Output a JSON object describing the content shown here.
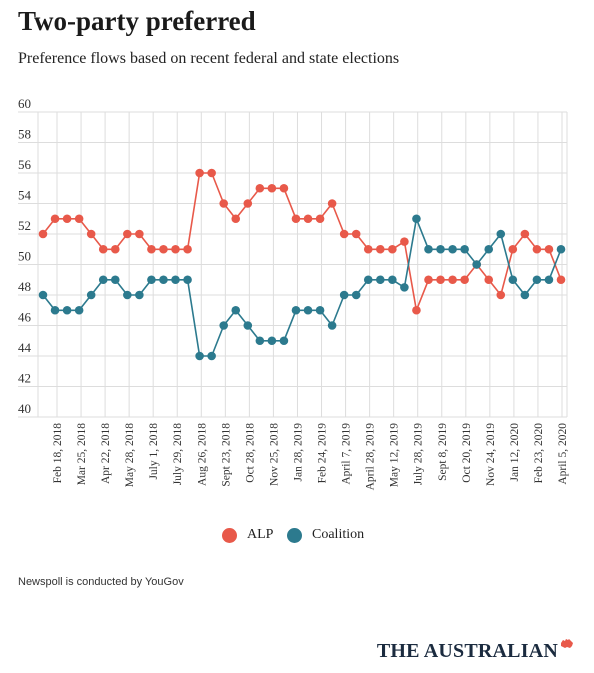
{
  "header": {
    "title": "Two-party preferred",
    "subtitle": "Preference flows based on recent federal and state elections"
  },
  "footer": {
    "note": "Newspoll is conducted by YouGov",
    "brand": "THE AUSTRALIAN"
  },
  "colors": {
    "alp": "#e8594a",
    "coalition": "#2c7a8e",
    "grid": "#dddddd",
    "brand_mark": "#e8594a"
  },
  "chart_data": {
    "type": "line",
    "title": "Two-party preferred",
    "subtitle": "Preference flows based on recent federal and state elections",
    "ylim": [
      40,
      60
    ],
    "yticks": [
      40,
      42,
      44,
      46,
      48,
      50,
      52,
      54,
      56,
      58,
      60
    ],
    "grid": true,
    "legend_position": "bottom-center",
    "x_tick_labels": [
      "Feb 18, 2018",
      "Mar 25, 2018",
      "Apr 22, 2018",
      "May 28, 2018",
      "July 1, 2018",
      "July 29, 2018",
      "Aug 26, 2018",
      "Sept 23, 2018",
      "Oct 28, 2018",
      "Nov 25, 2018",
      "Jan 28, 2019",
      "Feb 24, 2019",
      "April 7, 2019",
      "April 28, 2019",
      "May 12, 2019",
      "July 28, 2019",
      "Sept 8, 2019",
      "Oct 20, 2019",
      "Nov 24, 2019",
      "Jan 12, 2020",
      "Feb 23, 2020",
      "April 5, 2020"
    ],
    "series": [
      {
        "name": "ALP",
        "color": "#e8594a",
        "values": [
          52,
          53,
          53,
          53,
          52,
          51,
          51,
          52,
          52,
          51,
          51,
          51,
          51,
          56,
          56,
          54,
          53,
          54,
          55,
          55,
          55,
          53,
          53,
          53,
          54,
          52,
          52,
          51,
          51,
          51,
          51.5,
          47,
          49,
          49,
          49,
          49,
          50,
          49,
          48,
          51,
          52,
          51,
          51,
          49
        ]
      },
      {
        "name": "Coalition",
        "color": "#2c7a8e",
        "values": [
          48,
          47,
          47,
          47,
          48,
          49,
          49,
          48,
          48,
          49,
          49,
          49,
          49,
          44,
          44,
          46,
          47,
          46,
          45,
          45,
          45,
          47,
          47,
          47,
          46,
          48,
          48,
          49,
          49,
          49,
          48.5,
          53,
          51,
          51,
          51,
          51,
          50,
          51,
          52,
          49,
          48,
          49,
          49,
          51
        ]
      }
    ]
  }
}
